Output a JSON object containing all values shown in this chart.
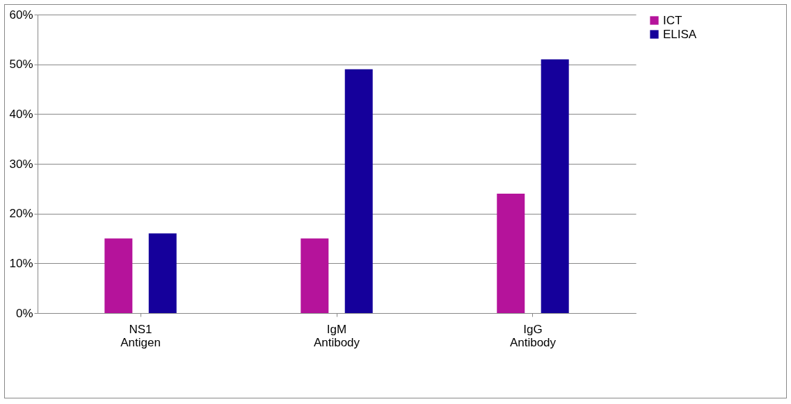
{
  "chart_data": {
    "type": "bar",
    "categories": [
      "NS1 Antigen",
      "IgM Antibody",
      "IgG Antibody"
    ],
    "series": [
      {
        "name": "ICT",
        "color": "#b5139b",
        "values": [
          15,
          15,
          24
        ]
      },
      {
        "name": "ELISA",
        "color": "#15009b",
        "values": [
          16,
          49,
          51
        ]
      }
    ],
    "ylim": [
      0,
      60
    ],
    "yticks": [
      {
        "value": 0,
        "label": "0%"
      },
      {
        "value": 10,
        "label": "10%"
      },
      {
        "value": 20,
        "label": "20%"
      },
      {
        "value": 30,
        "label": "30%"
      },
      {
        "value": 40,
        "label": "40%"
      },
      {
        "value": 50,
        "label": "50%"
      },
      {
        "value": 60,
        "label": "60%"
      }
    ],
    "grid": "y",
    "legend": "right"
  }
}
